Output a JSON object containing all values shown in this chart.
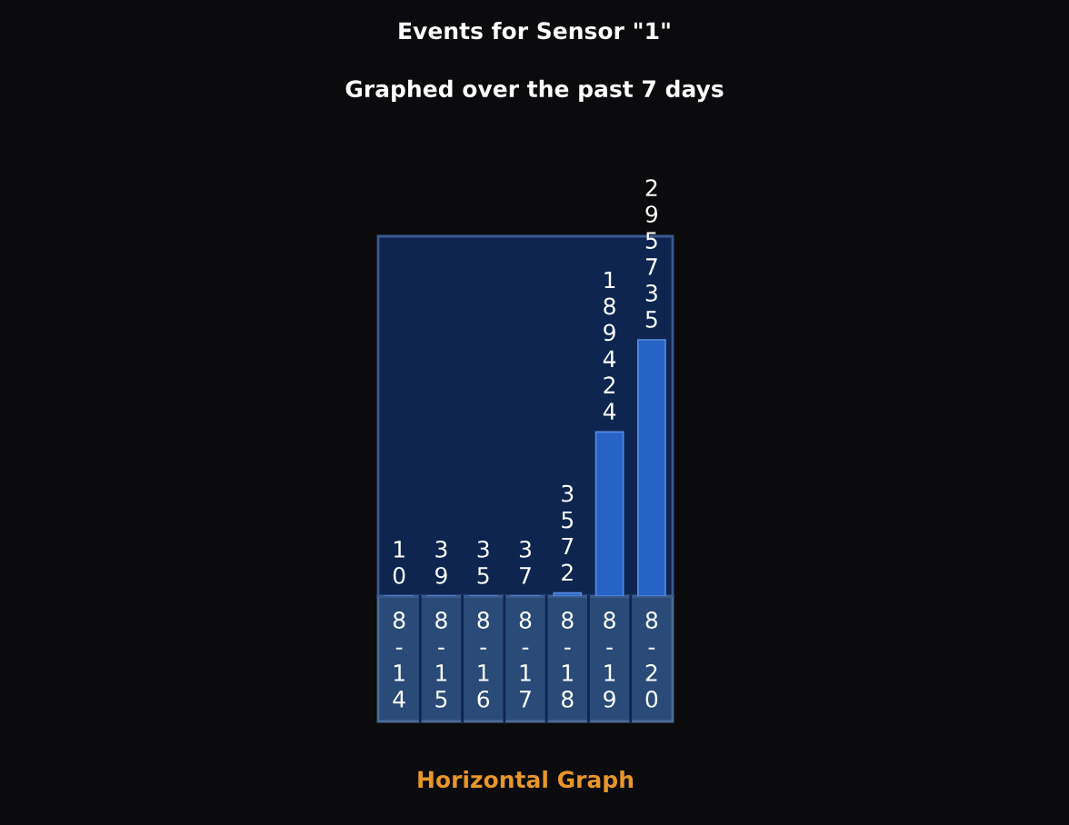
{
  "chart_data": {
    "type": "bar",
    "title": "Events for Sensor \"1\"",
    "subtitle": "Graphed over the past 7 days",
    "categories": [
      "8-14",
      "8-15",
      "8-16",
      "8-17",
      "8-18",
      "8-19",
      "8-20"
    ],
    "values": [
      10,
      39,
      35,
      37,
      3572,
      189424,
      295735
    ],
    "color": "#2564c4",
    "data_labels": true,
    "annotations": [
      "Horizontal Graph"
    ]
  }
}
